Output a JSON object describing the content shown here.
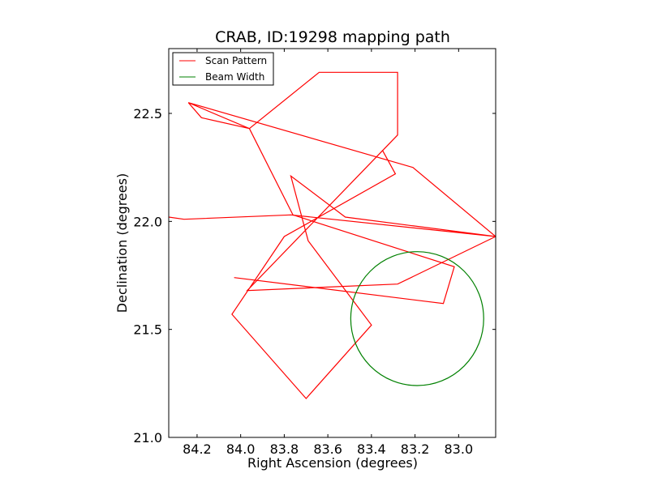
{
  "chart_data": {
    "type": "line",
    "title": "CRAB, ID:19298 mapping path",
    "xlabel": "Right Ascension (degrees)",
    "ylabel": "Declination (degrees)",
    "xlim": [
      84.33,
      82.83
    ],
    "ylim": [
      21.0,
      22.8
    ],
    "x_inverted": true,
    "xticks": [
      84.2,
      84.0,
      83.8,
      83.6,
      83.4,
      83.2,
      83.0
    ],
    "xtick_labels": [
      "84.2",
      "84.0",
      "83.8",
      "83.6",
      "83.4",
      "83.2",
      "83.0"
    ],
    "yticks": [
      21.0,
      21.5,
      22.0,
      22.5
    ],
    "ytick_labels": [
      "21.0",
      "21.5",
      "22.0",
      "22.5"
    ],
    "grid": false,
    "legend": {
      "position": "upper-left"
    },
    "series": [
      {
        "name": "Scan Pattern",
        "color": "#ff0000",
        "x": [
          84.33,
          84.26,
          83.77,
          82.83,
          83.28,
          83.97,
          83.28,
          83.28,
          83.64,
          83.96,
          84.24,
          83.21,
          82.83,
          83.52,
          83.77,
          83.69,
          83.4,
          83.7,
          84.04,
          83.8,
          83.29,
          83.35
        ],
        "y": [
          22.02,
          22.01,
          22.03,
          21.93,
          21.71,
          21.68,
          22.4,
          22.69,
          22.69,
          22.43,
          22.55,
          22.25,
          21.93,
          22.02,
          22.21,
          21.91,
          21.52,
          21.18,
          21.57,
          21.93,
          22.22,
          22.33
        ]
      },
      {
        "name": "Scan Pattern",
        "color": "#ff0000",
        "x": [
          84.24,
          84.18,
          83.96,
          83.76,
          83.02,
          83.07,
          84.03
        ],
        "y": [
          22.55,
          22.48,
          22.43,
          22.03,
          21.79,
          21.62,
          21.74
        ]
      },
      {
        "name": "Beam Width",
        "color": "#008000",
        "circle": {
          "center": [
            83.19,
            21.55
          ],
          "radius_ra": 0.305,
          "radius_dec": 0.31
        }
      }
    ],
    "legend_entries": [
      {
        "label": "Scan Pattern",
        "color": "#ff0000"
      },
      {
        "label": "Beam Width",
        "color": "#008000"
      }
    ]
  }
}
